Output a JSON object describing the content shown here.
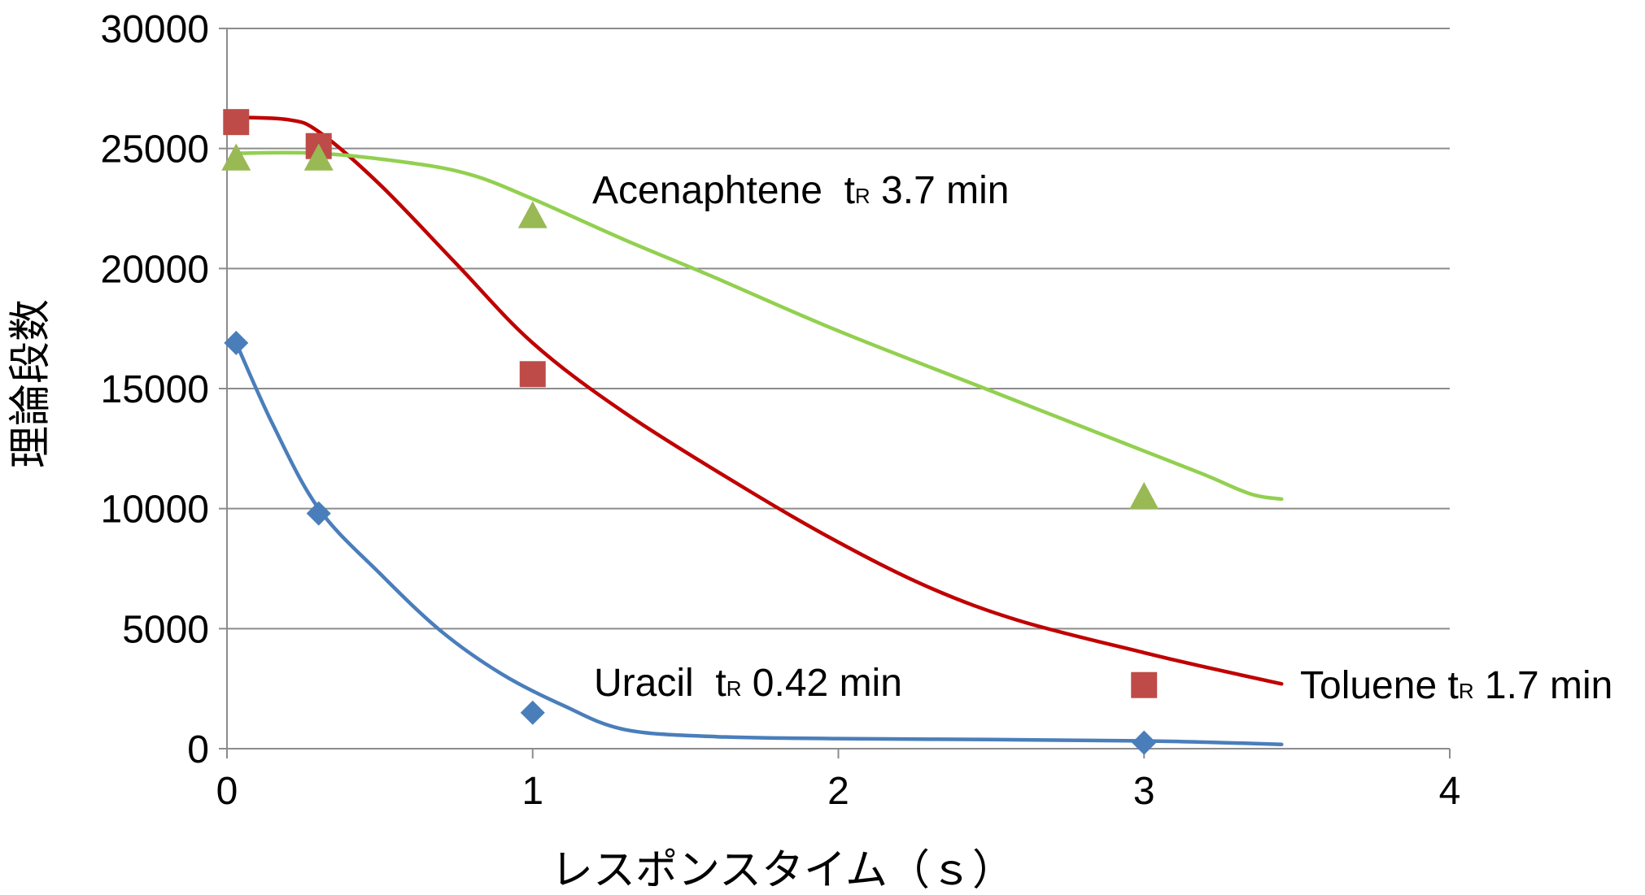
{
  "chart_data": {
    "type": "scatter",
    "xlabel": "レスポンスタイム（ｓ）",
    "ylabel": "理論段数",
    "xlim": [
      0,
      4
    ],
    "ylim": [
      0,
      30000
    ],
    "x_ticks": [
      "0",
      "1",
      "2",
      "3",
      "4"
    ],
    "y_ticks": [
      "0",
      "5000",
      "10000",
      "15000",
      "20000",
      "25000",
      "30000"
    ],
    "grid": "horizontal",
    "legend": "none",
    "series": [
      {
        "label_prefix": "Uracil  t",
        "label_sub": "R",
        "label_suffix": " 0.42 min",
        "color": "#4a7ebb",
        "marker": "diamond",
        "points": [
          [
            0.03,
            16900
          ],
          [
            0.3,
            9800
          ],
          [
            1.0,
            1500
          ],
          [
            3.0,
            250
          ]
        ],
        "trend": [
          [
            0.03,
            16900
          ],
          [
            0.15,
            13500
          ],
          [
            0.3,
            10000
          ],
          [
            0.5,
            7300
          ],
          [
            0.7,
            4900
          ],
          [
            0.9,
            3100
          ],
          [
            1.1,
            1800
          ],
          [
            1.3,
            800
          ],
          [
            1.6,
            500
          ],
          [
            2.0,
            420
          ],
          [
            2.5,
            380
          ],
          [
            3.0,
            320
          ],
          [
            3.2,
            270
          ],
          [
            3.45,
            180
          ]
        ]
      },
      {
        "label_prefix": "Toluene t",
        "label_sub": "R",
        "label_suffix": " 1.7 min",
        "color": "#be4b48",
        "line_color": "#c00000",
        "marker": "square",
        "points": [
          [
            0.03,
            26100
          ],
          [
            0.3,
            25100
          ],
          [
            1.0,
            15600
          ],
          [
            3.0,
            2650
          ]
        ],
        "trend": [
          [
            0.03,
            26300
          ],
          [
            0.2,
            26200
          ],
          [
            0.3,
            25700
          ],
          [
            0.5,
            23500
          ],
          [
            0.75,
            20200
          ],
          [
            1.0,
            16900
          ],
          [
            1.3,
            14000
          ],
          [
            1.7,
            10800
          ],
          [
            2.0,
            8600
          ],
          [
            2.3,
            6700
          ],
          [
            2.6,
            5300
          ],
          [
            3.0,
            4000
          ],
          [
            3.2,
            3400
          ],
          [
            3.45,
            2700
          ]
        ]
      },
      {
        "label_prefix": "Acenaphtene  t",
        "label_sub": "R",
        "label_suffix": " 3.7 min",
        "color": "#98b954",
        "line_color": "#92d050",
        "marker": "triangle",
        "points": [
          [
            0.03,
            24600
          ],
          [
            0.3,
            24600
          ],
          [
            1.0,
            22200
          ],
          [
            3.0,
            10500
          ]
        ],
        "trend": [
          [
            0.03,
            24800
          ],
          [
            0.3,
            24800
          ],
          [
            0.6,
            24400
          ],
          [
            0.8,
            23900
          ],
          [
            1.0,
            22900
          ],
          [
            1.3,
            21200
          ],
          [
            1.6,
            19600
          ],
          [
            2.0,
            17400
          ],
          [
            2.5,
            14900
          ],
          [
            3.0,
            12400
          ],
          [
            3.2,
            11400
          ],
          [
            3.35,
            10600
          ],
          [
            3.45,
            10400
          ]
        ]
      }
    ]
  }
}
